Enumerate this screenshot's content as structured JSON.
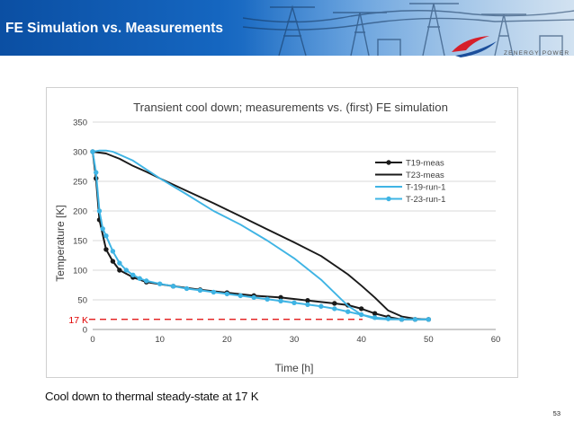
{
  "header": {
    "title": "FE Simulation vs. Measurements"
  },
  "logo": {
    "text": "ZENERGY POWER"
  },
  "caption": "Cool down to thermal steady-state at 17 K",
  "page_number": "53",
  "colors": {
    "banner": "#1566c0",
    "meas": "#1a1a1a",
    "sim": "#3fb4e4",
    "annotation": "#e00000"
  },
  "chart_data": {
    "type": "line",
    "title": "Transient cool down; measurements vs. (first)  FE simulation",
    "xlabel": "Time [h]",
    "ylabel": "Temperature [K]",
    "xlim": [
      0,
      60
    ],
    "ylim": [
      0,
      350
    ],
    "xticks": [
      0,
      10,
      20,
      30,
      40,
      50,
      60
    ],
    "yticks": [
      0,
      50,
      100,
      150,
      200,
      250,
      300,
      350
    ],
    "grid": "horizontal",
    "legend_position": "top-right",
    "series": [
      {
        "name": "T19-meas",
        "color": "#1a1a1a",
        "marker": true,
        "x": [
          0,
          0.5,
          1,
          2,
          3,
          4,
          6,
          8,
          12,
          16,
          20,
          24,
          28,
          32,
          36,
          38,
          40,
          42,
          44,
          46,
          48,
          50
        ],
        "y": [
          300,
          255,
          185,
          135,
          115,
          100,
          88,
          80,
          73,
          67,
          62,
          57,
          54,
          49,
          44,
          41,
          35,
          27,
          21,
          17,
          17,
          17
        ]
      },
      {
        "name": "T23-meas",
        "color": "#1a1a1a",
        "marker": false,
        "x": [
          0,
          2,
          4,
          6,
          8,
          10,
          14,
          18,
          22,
          26,
          30,
          34,
          38,
          40,
          42,
          44,
          46,
          48,
          50
        ],
        "y": [
          300,
          297,
          288,
          276,
          266,
          255,
          234,
          213,
          191,
          169,
          147,
          124,
          93,
          74,
          54,
          32,
          22,
          18,
          17
        ]
      },
      {
        "name": "T-19-run-1",
        "color": "#3fb4e4",
        "marker": false,
        "x": [
          0,
          1,
          2,
          3,
          4,
          6,
          8,
          10,
          14,
          18,
          22,
          26,
          30,
          34,
          38,
          40,
          42,
          44,
          46,
          50
        ],
        "y": [
          300,
          302,
          302,
          300,
          295,
          285,
          270,
          255,
          228,
          200,
          177,
          150,
          120,
          84,
          40,
          25,
          18,
          17,
          17,
          17
        ]
      },
      {
        "name": "T-23-run-1",
        "color": "#3fb4e4",
        "marker": true,
        "x": [
          0,
          0.5,
          1,
          1.5,
          2,
          3,
          4,
          5,
          6,
          7,
          8,
          10,
          12,
          14,
          16,
          18,
          20,
          22,
          24,
          26,
          28,
          30,
          32,
          34,
          36,
          38,
          40,
          42,
          44,
          46,
          48,
          50
        ],
        "y": [
          300,
          265,
          200,
          170,
          158,
          132,
          112,
          100,
          92,
          86,
          82,
          77,
          73,
          69,
          66,
          63,
          60,
          57,
          54,
          51,
          48,
          45,
          42,
          39,
          35,
          30,
          25,
          20,
          18,
          17,
          17,
          17
        ]
      }
    ],
    "annotations": [
      {
        "label": "17 K",
        "y": 17
      }
    ]
  }
}
